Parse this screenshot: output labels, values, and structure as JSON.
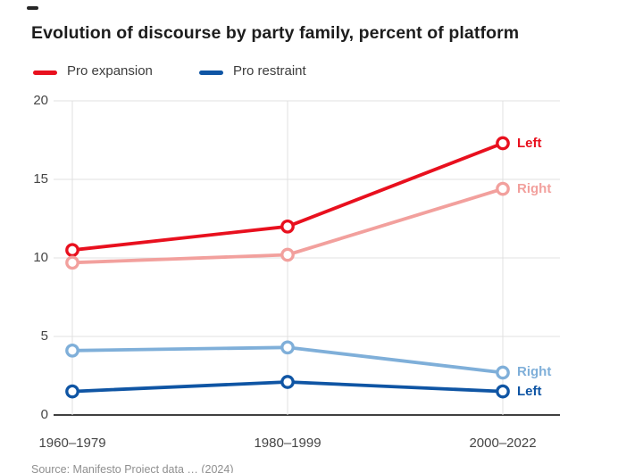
{
  "title": "Evolution of discourse by party family, percent of platform",
  "legend": [
    {
      "label": "Pro expansion",
      "color": "#e8101e"
    },
    {
      "label": "Pro restraint",
      "color": "#0f55a4"
    }
  ],
  "source_note": "Source: Manifesto Project data … (2024)",
  "colors": {
    "grid": "#e0e0e0",
    "axis_line": "#404040",
    "tick_text": "#454545",
    "title_text": "#1d1d1d",
    "marker_fill": "#ffffff"
  },
  "chart_data": {
    "type": "line",
    "categories": [
      "1960–1979",
      "1980–1999",
      "2000–2022"
    ],
    "series": [
      {
        "key": "pro-expansion-left",
        "name": "Pro expansion — Left",
        "end_label": "Left",
        "color": "#e8101e",
        "values": [
          10.5,
          12.0,
          17.3
        ]
      },
      {
        "key": "pro-expansion-right",
        "name": "Pro expansion — Right",
        "end_label": "Right",
        "color": "#f2a09d",
        "values": [
          9.7,
          10.2,
          14.4
        ]
      },
      {
        "key": "pro-restraint-right",
        "name": "Pro restraint — Right",
        "end_label": "Right",
        "color": "#7fafd9",
        "values": [
          4.1,
          4.3,
          2.7
        ]
      },
      {
        "key": "pro-restraint-left",
        "name": "Pro restraint — Left",
        "end_label": "Left",
        "color": "#0f55a4",
        "values": [
          1.5,
          2.1,
          1.5
        ]
      }
    ],
    "ylim": [
      0,
      20
    ],
    "yticks": [
      0,
      5,
      10,
      15,
      20
    ],
    "grid": true,
    "legend_position": "top",
    "marker": "open-circle",
    "end_labels": true
  }
}
